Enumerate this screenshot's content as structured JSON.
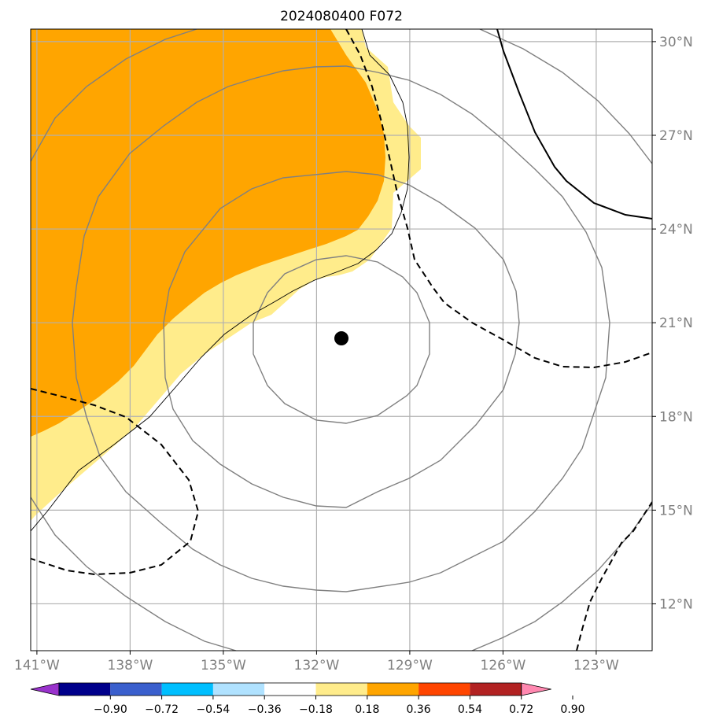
{
  "title": "2024080400 F072",
  "map": {
    "lon_labels": [
      "141°W",
      "138°W",
      "135°W",
      "132°W",
      "129°W",
      "126°W",
      "123°W"
    ],
    "lat_labels": [
      "30°N",
      "27°N",
      "24°N",
      "21°N",
      "18°N",
      "15°N",
      "12°N"
    ],
    "lon_values": [
      -141,
      -138,
      -135,
      -132,
      -129,
      -126,
      -123
    ],
    "lat_values": [
      30,
      27,
      24,
      21,
      18,
      15,
      12
    ],
    "extent": {
      "lon_min": -141.2,
      "lon_max": -121.2,
      "lat_min": 10.5,
      "lat_max": 30.4
    },
    "storm_center": {
      "lon": -131.2,
      "lat": 20.5
    },
    "colors": {
      "orange_fill": "#ffa500",
      "light_yellow_fill": "#ffec8b",
      "grid": "#b0b0b0",
      "contour_gray": "#808080",
      "contour_black": "#000000"
    }
  },
  "colorbar": {
    "ticks": [
      "−0.90",
      "−0.72",
      "−0.54",
      "−0.36",
      "−0.18",
      "0.18",
      "0.36",
      "0.54",
      "0.72",
      "0.90"
    ],
    "colors": [
      "#9932cc",
      "#00008b",
      "#3a5fcd",
      "#00bfff",
      "#b0e2ff",
      "#ffffff",
      "#ffec8b",
      "#ffa500",
      "#ff4500",
      "#b22222",
      "#ff88b0"
    ]
  }
}
